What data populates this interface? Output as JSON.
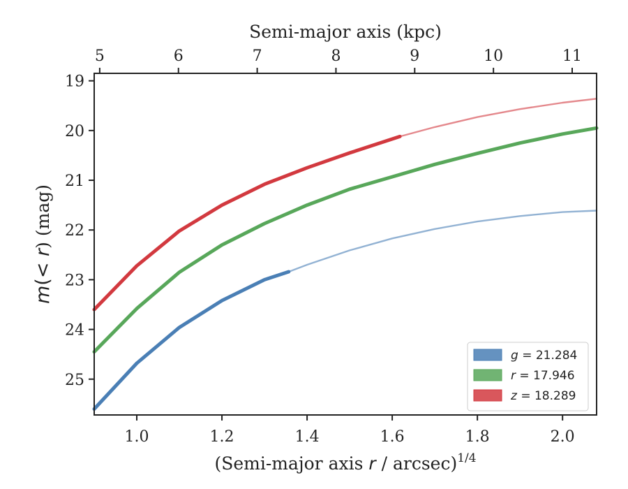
{
  "chart_data": {
    "type": "line",
    "xlabel": "(Semi-major axis r / arcsec)^{1/4}",
    "xlabel_parts": {
      "prefix": "(Semi-major axis ",
      "var": "r",
      "suffix": " / arcsec)",
      "exponent": "1/4"
    },
    "x2label": "Semi-major axis (kpc)",
    "ylabel": "m(< r) (mag)",
    "ylabel_parts": {
      "pre": "m",
      "mid": "(< ",
      "var": "r",
      "post": ") (mag)"
    },
    "xlim": [
      0.9,
      2.08
    ],
    "ylim": [
      25.72,
      18.85
    ],
    "y_inverted": true,
    "x2lim": [
      4.93,
      11.31
    ],
    "x_ticks": [
      1.0,
      1.2,
      1.4,
      1.6,
      1.8,
      2.0
    ],
    "x_tick_labels": [
      "1.0",
      "1.2",
      "1.4",
      "1.6",
      "1.8",
      "2.0"
    ],
    "y_ticks": [
      19,
      20,
      21,
      22,
      23,
      24,
      25
    ],
    "y_tick_labels": [
      "19",
      "20",
      "21",
      "22",
      "23",
      "24",
      "25"
    ],
    "x2_ticks": [
      5,
      6,
      7,
      8,
      9,
      10,
      11
    ],
    "x2_tick_labels": [
      "5",
      "6",
      "7",
      "8",
      "9",
      "10",
      "11"
    ],
    "grid": false,
    "legend_position": "bottom-right",
    "series": [
      {
        "name": "g = 21.284",
        "legend_var": "g",
        "legend_value": "21.284",
        "color": "#4a7fb5",
        "x": [
          0.9,
          1.0,
          1.1,
          1.2,
          1.3,
          1.357,
          1.4,
          1.5,
          1.6,
          1.7,
          1.8,
          1.9,
          2.0,
          2.08
        ],
        "y": [
          25.6,
          24.68,
          23.96,
          23.42,
          23.0,
          22.84,
          22.7,
          22.41,
          22.17,
          21.98,
          21.83,
          21.72,
          21.64,
          21.61
        ],
        "thick_until": 1.357
      },
      {
        "name": "r = 17.946",
        "legend_var": "r",
        "legend_value": "17.946",
        "color": "#58a75a",
        "x": [
          0.9,
          1.0,
          1.1,
          1.2,
          1.3,
          1.4,
          1.5,
          1.6,
          1.7,
          1.8,
          1.9,
          2.0,
          2.08
        ],
        "y": [
          24.45,
          23.58,
          22.85,
          22.3,
          21.87,
          21.5,
          21.18,
          20.93,
          20.68,
          20.46,
          20.25,
          20.07,
          19.95
        ],
        "thick_until": 2.08
      },
      {
        "name": "z = 18.289",
        "legend_var": "z",
        "legend_value": "18.289",
        "color": "#d2393f",
        "x": [
          0.9,
          1.0,
          1.1,
          1.2,
          1.3,
          1.4,
          1.5,
          1.618,
          1.7,
          1.8,
          1.9,
          2.0,
          2.08
        ],
        "y": [
          23.6,
          22.72,
          22.02,
          21.5,
          21.08,
          20.75,
          20.45,
          20.12,
          19.93,
          19.73,
          19.57,
          19.44,
          19.36
        ],
        "thick_until": 1.618
      }
    ]
  }
}
